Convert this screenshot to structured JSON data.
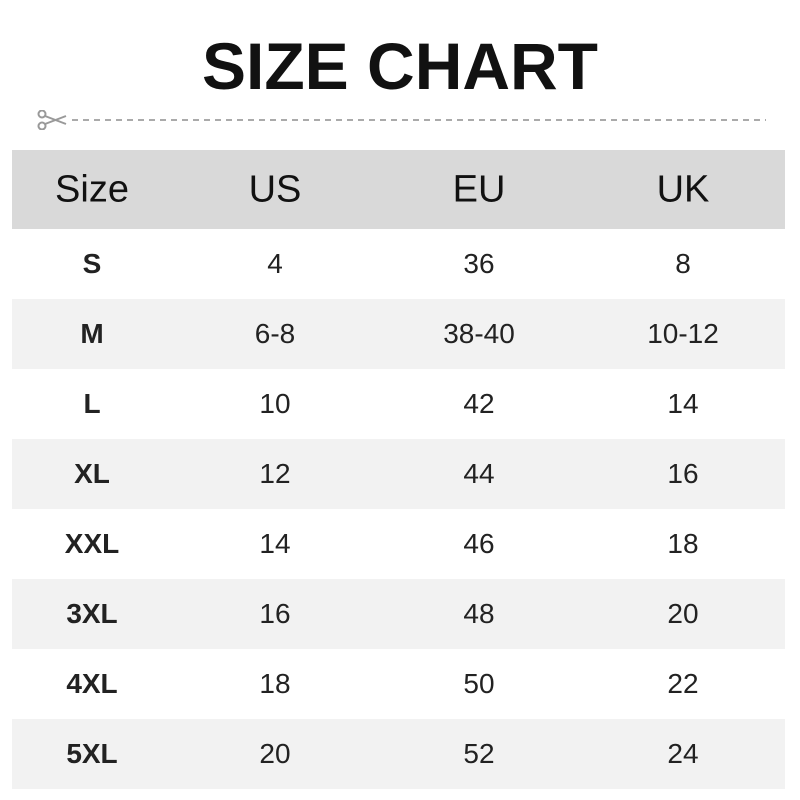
{
  "title": "SIZE CHART",
  "cut_icon": "scissors-icon",
  "colors": {
    "header_bg": "#d9d9d9",
    "alt_row_bg": "#f2f2f2",
    "dash": "#aaaaaa"
  },
  "headers": [
    "Size",
    "US",
    "EU",
    "UK"
  ],
  "rows": [
    [
      "S",
      "4",
      "36",
      "8"
    ],
    [
      "M",
      "6-8",
      "38-40",
      "10-12"
    ],
    [
      "L",
      "10",
      "42",
      "14"
    ],
    [
      "XL",
      "12",
      "44",
      "16"
    ],
    [
      "XXL",
      "14",
      "46",
      "18"
    ],
    [
      "3XL",
      "16",
      "48",
      "20"
    ],
    [
      "4XL",
      "18",
      "50",
      "22"
    ],
    [
      "5XL",
      "20",
      "52",
      "24"
    ]
  ]
}
